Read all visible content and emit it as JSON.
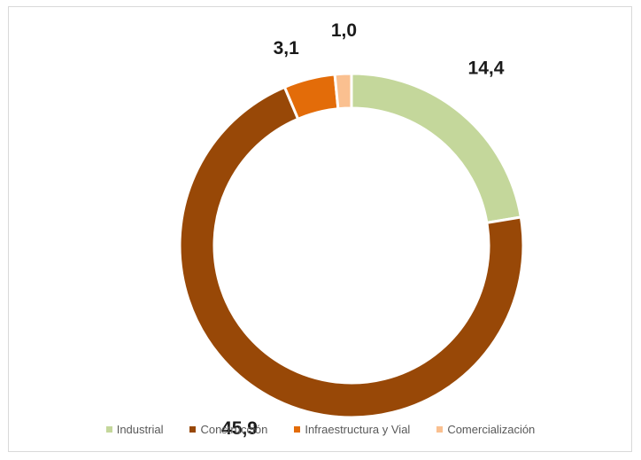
{
  "chart_data": {
    "type": "pie",
    "subtype": "donut",
    "title": "",
    "categories": [
      "Industrial",
      "Construcción",
      "Infraestructura y Vial",
      "Comercialización"
    ],
    "values": [
      14.4,
      45.9,
      3.1,
      1.0
    ],
    "value_labels": [
      "14,4",
      "45,9",
      "3,1",
      "1,0"
    ],
    "colors": [
      "#c4d79b",
      "#984807",
      "#e36c09",
      "#fac090"
    ],
    "legend_position": "bottom",
    "start_angle": "top, clockwise"
  }
}
